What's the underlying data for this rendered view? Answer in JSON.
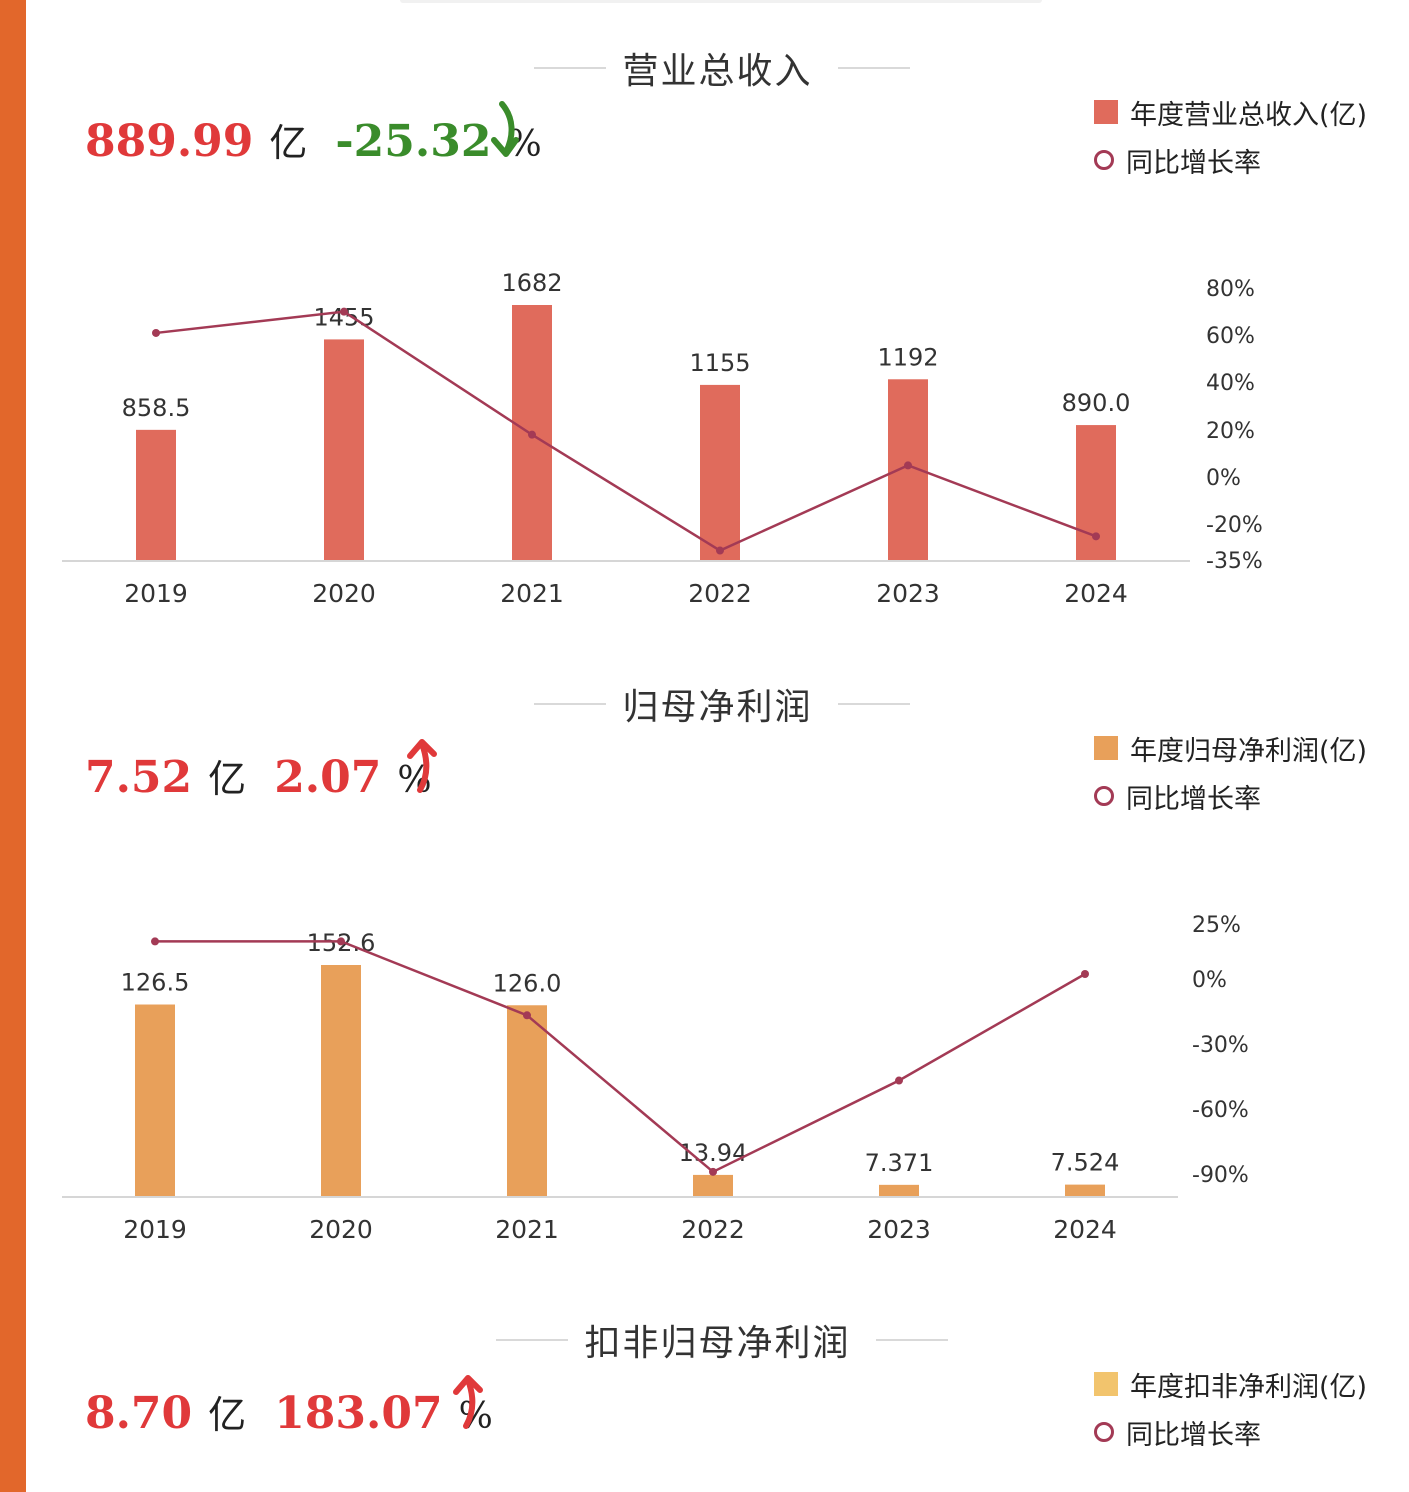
{
  "colors": {
    "accent_bar": "#e2672b",
    "revenue_bar": "#e06b5c",
    "profit_bar": "#e8a05a",
    "nonrecurring_bar": "#f2c46d",
    "yoy_line": "#a33a55",
    "value_red": "#e0393a",
    "value_green": "#3a8c2b"
  },
  "sections": [
    {
      "title": "营业总收入",
      "value": "889.99",
      "value_unit": "亿",
      "change": "-25.32",
      "change_unit": "%",
      "change_direction": "down",
      "legend_bar": "年度营业总收入(亿)",
      "legend_line": "同比增长率",
      "chart_data": {
        "type": "bar",
        "categories": [
          "2019",
          "2020",
          "2021",
          "2022",
          "2023",
          "2024"
        ],
        "series": [
          {
            "name": "年度营业总收入(亿)",
            "type": "bar",
            "values": [
              858.5,
              1455,
              1682,
              1155,
              1192,
              890.0
            ],
            "labels": [
              "858.5",
              "1455",
              "1682",
              "1155",
              "1192",
              "890.0"
            ]
          },
          {
            "name": "同比增长率",
            "type": "line",
            "axis": "right",
            "values": [
              61,
              70,
              18,
              -31,
              5,
              -25
            ]
          }
        ],
        "y_right_ticks": [
          "80%",
          "60%",
          "40%",
          "20%",
          "0%",
          "-20%",
          "-35%"
        ]
      }
    },
    {
      "title": "归母净利润",
      "value": "7.52",
      "value_unit": "亿",
      "change": "2.07",
      "change_unit": "%",
      "change_direction": "up",
      "legend_bar": "年度归母净利润(亿)",
      "legend_line": "同比增长率",
      "chart_data": {
        "type": "bar",
        "categories": [
          "2019",
          "2020",
          "2021",
          "2022",
          "2023",
          "2024"
        ],
        "series": [
          {
            "name": "年度归母净利润(亿)",
            "type": "bar",
            "values": [
              126.5,
              152.6,
              126.0,
              13.94,
              7.371,
              7.524
            ],
            "labels": [
              "126.5",
              "152.6",
              "126.0",
              "13.94",
              "7.371",
              "7.524"
            ]
          },
          {
            "name": "同比增长率",
            "type": "line",
            "axis": "right",
            "values": [
              17,
              17,
              -17,
              -89,
              -47,
              2
            ]
          }
        ],
        "y_right_ticks": [
          "25%",
          "0%",
          "-30%",
          "-60%",
          "-90%"
        ]
      }
    },
    {
      "title": "扣非归母净利润",
      "value": "8.70",
      "value_unit": "亿",
      "change": "183.07",
      "change_unit": "%",
      "change_direction": "up",
      "legend_bar": "年度扣非净利润(亿)",
      "legend_line": "同比增长率"
    }
  ]
}
